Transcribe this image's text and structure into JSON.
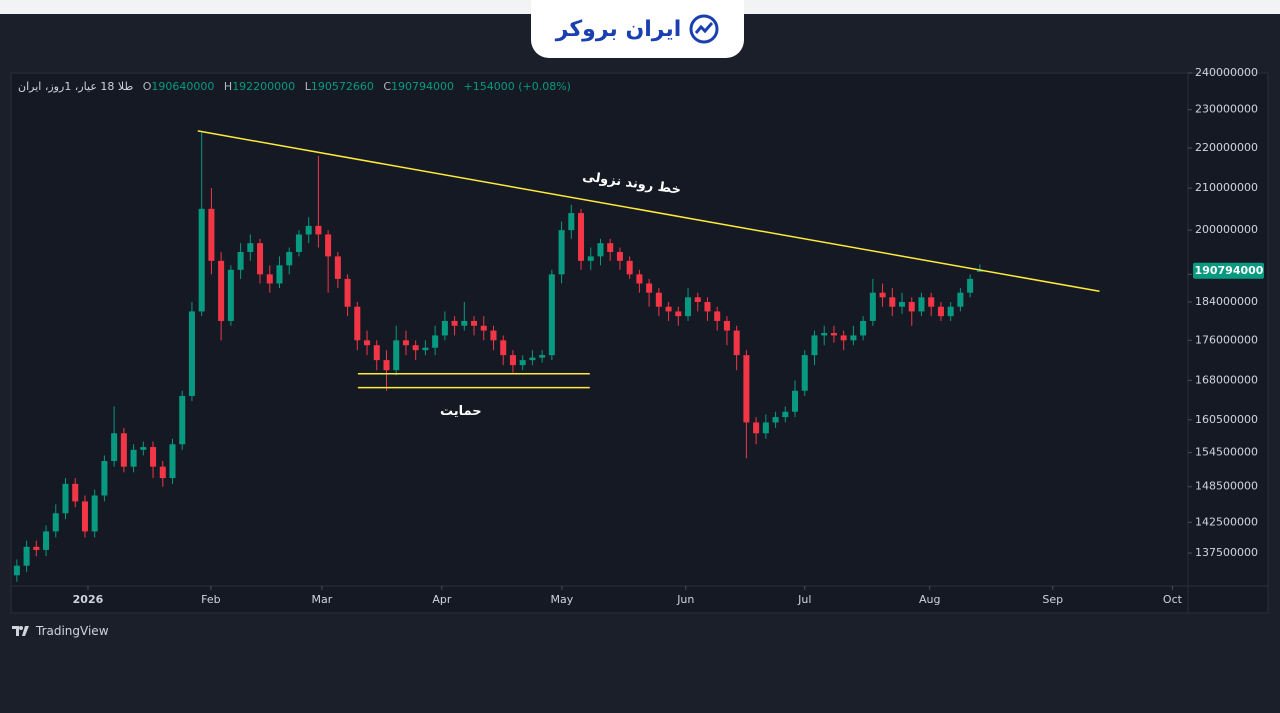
{
  "brand": "ایران بروکر",
  "footer": "TradingView",
  "chart_data": {
    "type": "candlestick",
    "title": "طلا 18 عیار، 1روز، ایران",
    "legend_labels": {
      "open": "O",
      "high": "H",
      "low": "L",
      "close": "C"
    },
    "change_label": "+154000 (+0.08%)",
    "up_color": "#089981",
    "down_color": "#f23645",
    "log_scale": true,
    "grid": false,
    "ylim": [
      132500000,
      240000000
    ],
    "yticks": [
      240000000,
      230000000,
      220000000,
      210000000,
      200000000,
      190000000,
      184000000,
      176000000,
      168000000,
      160500000,
      154500000,
      148500000,
      142500000,
      137500000
    ],
    "xlim": [
      -0.5,
      120.4
    ],
    "xticks": [
      {
        "value": 7.31,
        "label": "2026"
      },
      {
        "value": 19.95,
        "label": "Feb"
      },
      {
        "value": 31.36,
        "label": "Mar"
      },
      {
        "value": 43.69,
        "label": "Apr"
      },
      {
        "value": 56.03,
        "label": "May"
      },
      {
        "value": 68.77,
        "label": "Jun"
      },
      {
        "value": 81.0,
        "label": "Jul"
      },
      {
        "value": 93.85,
        "label": "Aug"
      },
      {
        "value": 106.5,
        "label": "Sep"
      },
      {
        "value": 118.8,
        "label": "Oct"
      }
    ],
    "open": [
      134000000,
      135500000,
      138500000,
      138000000,
      141000000,
      144000000,
      149000000,
      146000000,
      141000000,
      147000000,
      153000000,
      158000000,
      152000000,
      155000000,
      155500000,
      152000000,
      150000000,
      156000000,
      165000000,
      182000000,
      205000000,
      193000000,
      180000000,
      191000000,
      195000000,
      197000000,
      190000000,
      188000000,
      192000000,
      195000000,
      199000000,
      201000000,
      199000000,
      194000000,
      189000000,
      183000000,
      176000000,
      175000000,
      172000000,
      170000000,
      176000000,
      175000000,
      174000000,
      174500000,
      177000000,
      180000000,
      179000000,
      180000000,
      179000000,
      178000000,
      176000000,
      173000000,
      171000000,
      172000000,
      172500000,
      173000000,
      190000000,
      200000000,
      204000000,
      193000000,
      194000000,
      197000000,
      195000000,
      193000000,
      190000000,
      188000000,
      186000000,
      183000000,
      182000000,
      181000000,
      185000000,
      184000000,
      182000000,
      180000000,
      178000000,
      173000000,
      160000000,
      158000000,
      160000000,
      161000000,
      162000000,
      166000000,
      173000000,
      177000000,
      177500000,
      177000000,
      176000000,
      177000000,
      180000000,
      186000000,
      185000000,
      183000000,
      184000000,
      182000000,
      185000000,
      183000000,
      181000000,
      183000000,
      186000000,
      190640000
    ],
    "high": [
      136500000,
      139500000,
      139500000,
      142000000,
      145500000,
      150000000,
      150000000,
      147000000,
      148000000,
      154000000,
      163000000,
      159000000,
      156000000,
      156500000,
      156500000,
      153000000,
      157000000,
      166000000,
      184000000,
      224000000,
      210000000,
      195000000,
      192000000,
      197000000,
      199000000,
      198000000,
      192000000,
      194000000,
      196000000,
      200000000,
      203000000,
      218000000,
      200000000,
      195000000,
      190000000,
      184000000,
      178000000,
      176000000,
      174000000,
      179000000,
      178000000,
      176000000,
      176000000,
      179000000,
      182000000,
      181000000,
      184000000,
      181000000,
      181000000,
      179000000,
      177000000,
      174000000,
      173000000,
      174000000,
      174000000,
      191000000,
      202000000,
      206000000,
      205000000,
      196000000,
      198000000,
      198000000,
      196000000,
      194000000,
      191000000,
      189000000,
      187000000,
      184000000,
      183000000,
      187000000,
      186000000,
      185000000,
      183000000,
      181000000,
      179000000,
      174000000,
      161000000,
      161500000,
      162000000,
      163000000,
      168000000,
      174000000,
      178000000,
      179000000,
      179000000,
      178000000,
      179000000,
      181000000,
      189000000,
      188000000,
      187000000,
      186000000,
      185000000,
      186000000,
      186000000,
      184000000,
      184000000,
      187000000,
      190000000,
      192200000
    ],
    "low": [
      133000000,
      134500000,
      137000000,
      137000000,
      140000000,
      143000000,
      145000000,
      140000000,
      140000000,
      146000000,
      152000000,
      151000000,
      151000000,
      154000000,
      150000000,
      148500000,
      149000000,
      155000000,
      164000000,
      181000000,
      190000000,
      176000000,
      179000000,
      189000000,
      193000000,
      188000000,
      186000000,
      187000000,
      190000000,
      194000000,
      197000000,
      196000000,
      186000000,
      187000000,
      181000000,
      174000000,
      173000000,
      170000000,
      166000000,
      169000000,
      173000000,
      172000000,
      173000000,
      173000000,
      176000000,
      177000000,
      178000000,
      177000000,
      176000000,
      174000000,
      171000000,
      169500000,
      170000000,
      171000000,
      171500000,
      172000000,
      188000000,
      198000000,
      191000000,
      191000000,
      192000000,
      193000000,
      191000000,
      189000000,
      186000000,
      183000000,
      181000000,
      180000000,
      179000000,
      180000000,
      182000000,
      180000000,
      178000000,
      175000000,
      170000000,
      153500000,
      156000000,
      157000000,
      159000000,
      160000000,
      161000000,
      165000000,
      171000000,
      175000000,
      175500000,
      174000000,
      175000000,
      176000000,
      179000000,
      183000000,
      181000000,
      181500000,
      179000000,
      181000000,
      181000000,
      180000000,
      180000000,
      182000000,
      185000000,
      190572660
    ],
    "close": [
      135500000,
      138500000,
      138000000,
      141000000,
      144000000,
      149000000,
      146000000,
      141000000,
      147000000,
      153000000,
      158000000,
      152000000,
      155000000,
      155500000,
      152000000,
      150000000,
      156000000,
      165000000,
      182000000,
      205000000,
      193000000,
      180000000,
      191000000,
      195000000,
      197000000,
      190000000,
      188000000,
      192000000,
      195000000,
      199000000,
      201000000,
      199000000,
      194000000,
      189000000,
      183000000,
      176000000,
      175000000,
      172000000,
      170000000,
      176000000,
      175000000,
      174000000,
      174500000,
      177000000,
      180000000,
      179000000,
      180000000,
      179000000,
      178000000,
      176000000,
      173000000,
      171000000,
      172000000,
      172500000,
      173000000,
      190000000,
      200000000,
      204000000,
      193000000,
      194000000,
      197000000,
      195000000,
      193000000,
      190000000,
      188000000,
      186000000,
      183000000,
      182000000,
      181000000,
      185000000,
      184000000,
      182000000,
      180000000,
      178000000,
      173000000,
      160000000,
      158000000,
      160000000,
      161000000,
      162000000,
      166000000,
      173000000,
      177000000,
      177500000,
      177000000,
      176000000,
      177000000,
      180000000,
      186000000,
      185000000,
      183000000,
      184000000,
      182000000,
      185000000,
      183000000,
      181000000,
      183000000,
      186000000,
      189000000,
      190794000
    ],
    "trendline": {
      "x": [
        18.6,
        111.3
      ],
      "y": [
        224400000,
        186300000
      ],
      "color": "#ffeb3b",
      "label": "خط روند نزولی"
    },
    "support": {
      "x": [
        35.06,
        58.9
      ],
      "y": [
        169300000,
        166600000
      ],
      "color": "#ffeb3b",
      "label": "حمایت"
    }
  }
}
